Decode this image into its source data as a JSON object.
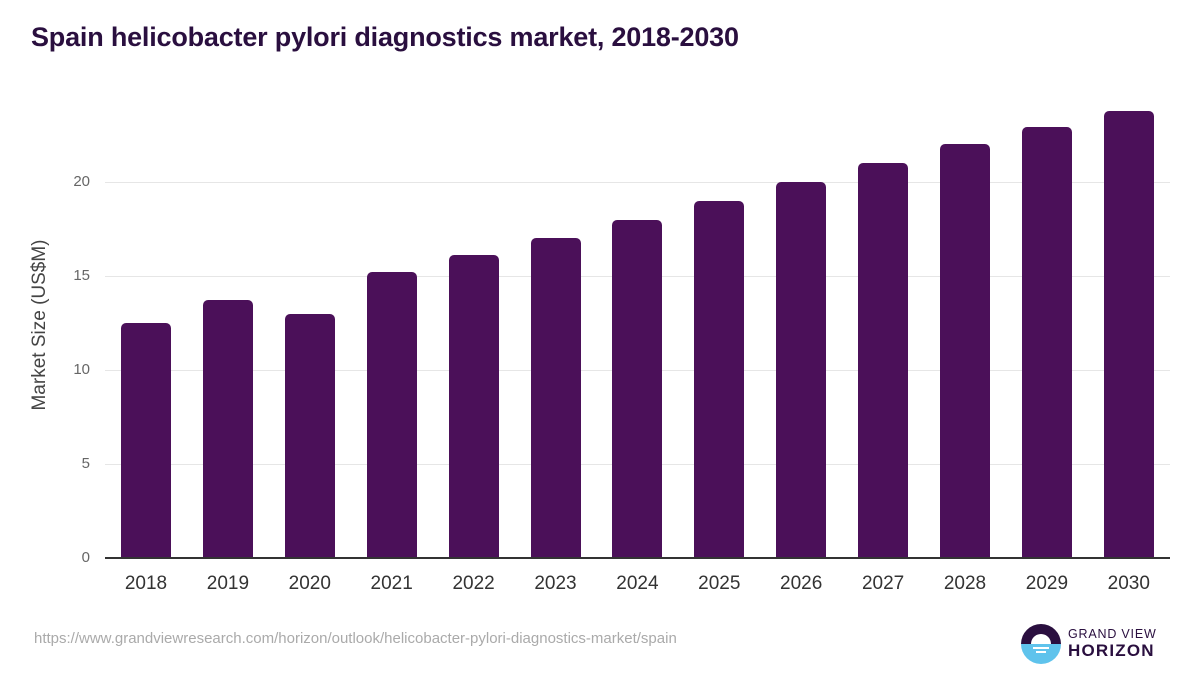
{
  "title": "Spain helicobacter pylori diagnostics market, 2018-2030",
  "source_url": "https://www.grandviewresearch.com/horizon/outlook/helicobacter-pylori-diagnostics-market/spain",
  "logo": {
    "line1": "GRAND VIEW",
    "line2": "HORIZON",
    "icon": "horizon-sun-icon"
  },
  "colors": {
    "bar": "#4b1059",
    "title": "#2a0f3f",
    "logo_dark": "#2a0f3f",
    "logo_light": "#5fc3ec"
  },
  "chart_data": {
    "type": "bar",
    "title": "Spain helicobacter pylori diagnostics market, 2018-2030",
    "xlabel": "",
    "ylabel": "Market Size (US$M)",
    "categories": [
      "2018",
      "2019",
      "2020",
      "2021",
      "2022",
      "2023",
      "2024",
      "2025",
      "2026",
      "2027",
      "2028",
      "2029",
      "2030"
    ],
    "values": [
      12.5,
      13.7,
      13.0,
      15.2,
      16.1,
      17.0,
      18.0,
      19.0,
      20.0,
      21.0,
      22.0,
      22.9,
      23.8
    ],
    "yticks": [
      "0",
      "5",
      "10",
      "15",
      "20"
    ],
    "ylim": [
      0,
      25
    ],
    "grid": true,
    "legend": "none"
  }
}
